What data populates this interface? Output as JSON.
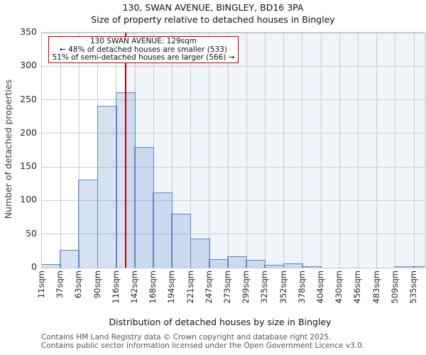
{
  "figure": {
    "title": "130, SWAN AVENUE, BINGLEY, BD16 3PA",
    "subtitle": "Size of property relative to detached houses in Bingley"
  },
  "annotation": {
    "line1": "130 SWAN AVENUE: 129sqm",
    "line2": "← 48% of detached houses are smaller (533)",
    "line3": "51% of semi-detached houses are larger (566) →"
  },
  "chart_data": {
    "type": "bar",
    "subtype": "histogram",
    "xlabel": "Distribution of detached houses by size in Bingley",
    "ylabel": "Number of detached properties",
    "x_tick_labels": [
      "11sqm",
      "37sqm",
      "63sqm",
      "90sqm",
      "116sqm",
      "142sqm",
      "168sqm",
      "194sqm",
      "221sqm",
      "247sqm",
      "273sqm",
      "299sqm",
      "325sqm",
      "352sqm",
      "378sqm",
      "404sqm",
      "430sqm",
      "456sqm",
      "483sqm",
      "509sqm",
      "535sqm"
    ],
    "bin_edges_sqm": [
      11,
      37,
      63,
      90,
      116,
      142,
      168,
      194,
      221,
      247,
      273,
      299,
      325,
      352,
      378,
      404,
      430,
      456,
      483,
      509,
      535
    ],
    "counts": [
      4,
      25,
      130,
      240,
      260,
      178,
      110,
      79,
      42,
      11,
      15,
      10,
      3,
      5,
      1,
      0,
      0,
      0,
      0,
      1
    ],
    "overflow_count_beyond_last_edge": 1,
    "marker_sqm": 129,
    "y_ticks": [
      0,
      50,
      100,
      150,
      200,
      250,
      300,
      350
    ],
    "ylim": [
      0,
      350
    ],
    "grid": true,
    "legend": false,
    "shaded_region": "right-of-marker",
    "colors": {
      "bar_fill": "rgba(93,140,201,0.25)",
      "bar_edge": "#5b89c4",
      "marker_line": "#b40000",
      "annotation_border": "#c00000",
      "shaded_region": "#f0f4fb",
      "grid": "#cccccc"
    }
  },
  "footer": {
    "line1": "Contains HM Land Registry data © Crown copyright and database right 2025.",
    "line2": "Contains public sector information licensed under the Open Government Licence v3.0."
  }
}
